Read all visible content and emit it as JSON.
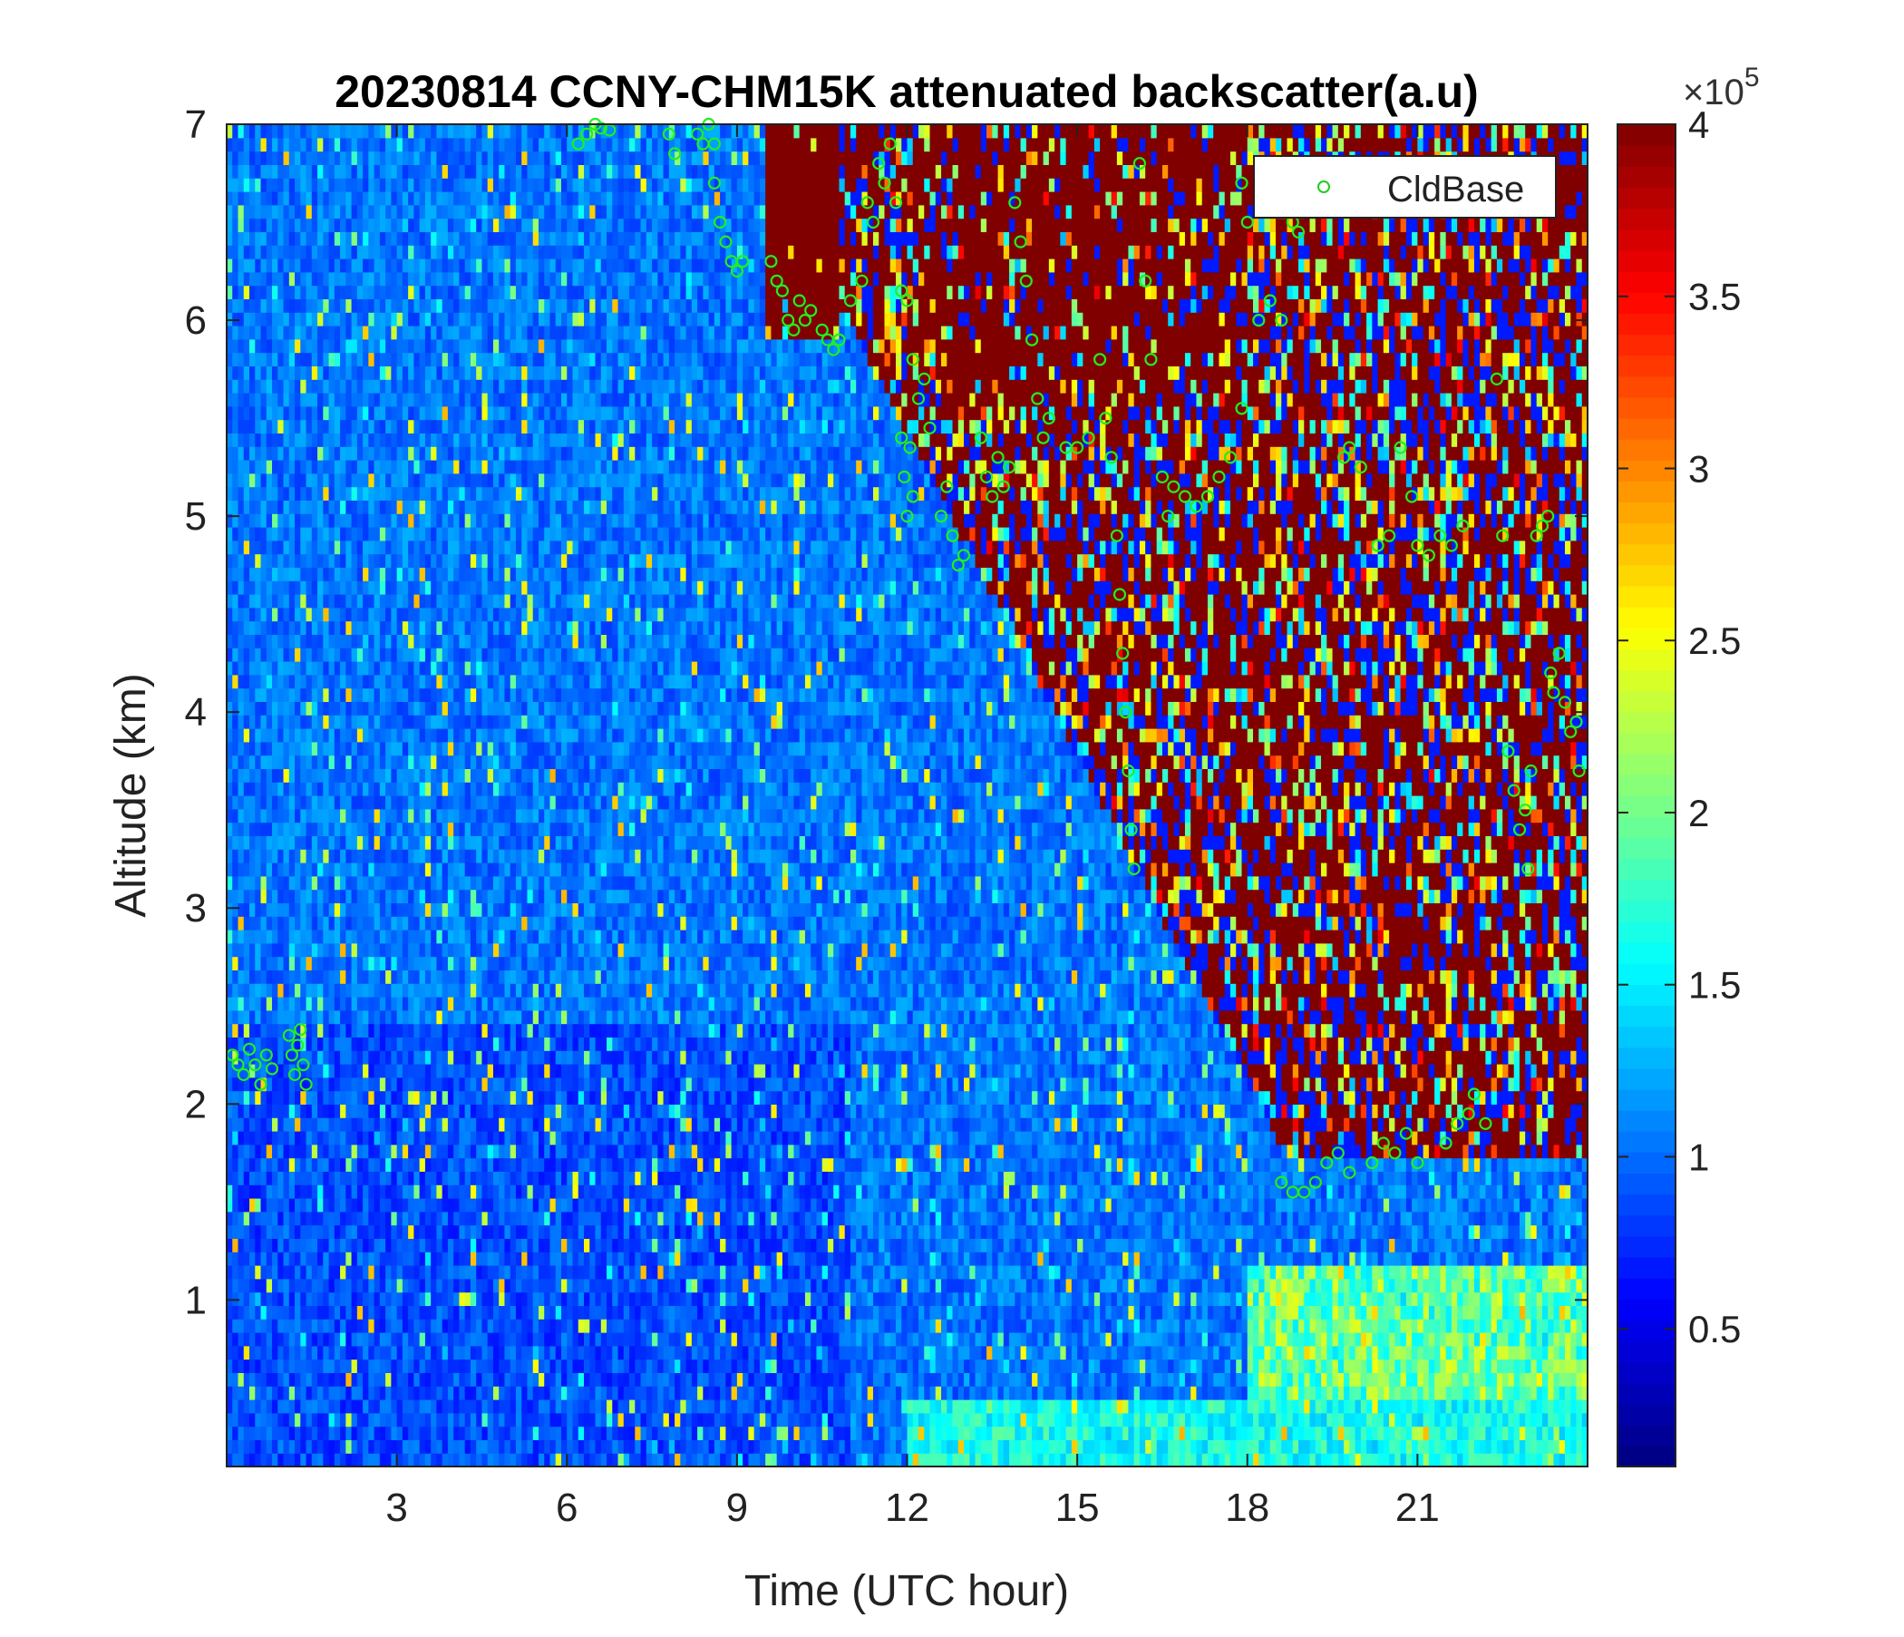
{
  "chart_data": {
    "type": "heatmap",
    "title": "20230814 CCNY-CHM15K attenuated backscatter(a.u)",
    "xlabel": "Time (UTC hour)",
    "ylabel": "Altitude (km)",
    "xlim": [
      0,
      24
    ],
    "ylim": [
      0.15,
      7
    ],
    "xticks": [
      3,
      6,
      9,
      12,
      15,
      18,
      21
    ],
    "yticks": [
      1,
      2,
      3,
      4,
      5,
      6,
      7
    ],
    "colorbar": {
      "colormap": "jet",
      "range": [
        0.1,
        4.0
      ],
      "ticks": [
        0.5,
        1,
        1.5,
        2,
        2.5,
        3,
        3.5,
        4
      ],
      "tick_labels": [
        "0.5",
        "1",
        "1.5",
        "2",
        "2.5",
        "3",
        "3.5",
        "4"
      ],
      "exponent_label": "×10",
      "exponent_power": "5"
    },
    "legend": {
      "position": "top-right",
      "entries": [
        "CldBase"
      ]
    },
    "series": [
      {
        "name": "CldBase",
        "marker": "circle",
        "color": "#22ee22",
        "points": [
          [
            0.1,
            2.25
          ],
          [
            0.2,
            2.2
          ],
          [
            0.3,
            2.15
          ],
          [
            0.4,
            2.28
          ],
          [
            0.5,
            2.2
          ],
          [
            0.6,
            2.1
          ],
          [
            0.7,
            2.25
          ],
          [
            0.8,
            2.18
          ],
          [
            1.1,
            2.35
          ],
          [
            1.15,
            2.25
          ],
          [
            1.2,
            2.15
          ],
          [
            1.25,
            2.3
          ],
          [
            1.3,
            2.38
          ],
          [
            1.35,
            2.2
          ],
          [
            1.4,
            2.1
          ],
          [
            6.2,
            6.9
          ],
          [
            6.35,
            6.95
          ],
          [
            6.5,
            7.0
          ],
          [
            6.6,
            6.98
          ],
          [
            6.75,
            6.97
          ],
          [
            7.8,
            6.95
          ],
          [
            7.9,
            6.85
          ],
          [
            8.3,
            6.95
          ],
          [
            8.4,
            6.9
          ],
          [
            8.5,
            7.0
          ],
          [
            8.6,
            6.9
          ],
          [
            8.6,
            6.7
          ],
          [
            8.7,
            6.5
          ],
          [
            8.8,
            6.4
          ],
          [
            8.9,
            6.3
          ],
          [
            9.0,
            6.25
          ],
          [
            9.1,
            6.3
          ],
          [
            9.6,
            6.3
          ],
          [
            9.7,
            6.2
          ],
          [
            9.8,
            6.15
          ],
          [
            9.9,
            6.0
          ],
          [
            10.0,
            5.95
          ],
          [
            10.1,
            6.1
          ],
          [
            10.2,
            6.0
          ],
          [
            10.3,
            6.05
          ],
          [
            10.5,
            5.95
          ],
          [
            10.6,
            5.9
          ],
          [
            10.7,
            5.85
          ],
          [
            10.8,
            5.9
          ],
          [
            11.0,
            6.1
          ],
          [
            11.2,
            6.2
          ],
          [
            11.3,
            6.6
          ],
          [
            11.4,
            6.5
          ],
          [
            11.5,
            6.8
          ],
          [
            11.6,
            6.7
          ],
          [
            11.7,
            6.9
          ],
          [
            11.8,
            6.6
          ],
          [
            11.9,
            6.15
          ],
          [
            12.0,
            6.1
          ],
          [
            12.1,
            5.8
          ],
          [
            12.2,
            5.6
          ],
          [
            12.3,
            5.7
          ],
          [
            12.4,
            5.45
          ],
          [
            11.9,
            5.4
          ],
          [
            11.95,
            5.2
          ],
          [
            12.0,
            5.0
          ],
          [
            12.05,
            5.35
          ],
          [
            12.1,
            5.1
          ],
          [
            12.6,
            5.0
          ],
          [
            12.7,
            5.15
          ],
          [
            12.8,
            4.9
          ],
          [
            12.9,
            4.75
          ],
          [
            13.0,
            4.8
          ],
          [
            13.3,
            5.4
          ],
          [
            13.4,
            5.2
          ],
          [
            13.5,
            5.1
          ],
          [
            13.6,
            5.3
          ],
          [
            13.7,
            5.15
          ],
          [
            13.8,
            5.25
          ],
          [
            13.9,
            6.6
          ],
          [
            14.0,
            6.4
          ],
          [
            14.1,
            6.2
          ],
          [
            14.2,
            5.9
          ],
          [
            14.3,
            5.6
          ],
          [
            14.4,
            5.4
          ],
          [
            14.5,
            5.5
          ],
          [
            14.8,
            5.35
          ],
          [
            15.0,
            5.35
          ],
          [
            15.2,
            5.4
          ],
          [
            15.4,
            5.8
          ],
          [
            15.5,
            5.5
          ],
          [
            15.6,
            5.3
          ],
          [
            15.7,
            4.9
          ],
          [
            15.75,
            4.6
          ],
          [
            15.8,
            4.3
          ],
          [
            15.85,
            4.0
          ],
          [
            15.9,
            3.7
          ],
          [
            15.95,
            3.4
          ],
          [
            16.0,
            3.2
          ],
          [
            16.1,
            6.8
          ],
          [
            16.2,
            6.2
          ],
          [
            16.3,
            5.8
          ],
          [
            16.5,
            5.2
          ],
          [
            16.6,
            5.0
          ],
          [
            16.7,
            5.15
          ],
          [
            16.9,
            5.1
          ],
          [
            17.1,
            5.05
          ],
          [
            17.3,
            5.1
          ],
          [
            17.5,
            5.2
          ],
          [
            17.7,
            5.3
          ],
          [
            17.9,
            5.55
          ],
          [
            17.9,
            6.7
          ],
          [
            18.0,
            6.5
          ],
          [
            18.2,
            6.0
          ],
          [
            18.4,
            6.1
          ],
          [
            18.6,
            6.0
          ],
          [
            18.8,
            6.5
          ],
          [
            18.9,
            6.45
          ],
          [
            18.6,
            1.6
          ],
          [
            18.8,
            1.55
          ],
          [
            19.0,
            1.55
          ],
          [
            19.2,
            1.6
          ],
          [
            19.4,
            1.7
          ],
          [
            19.6,
            1.75
          ],
          [
            19.8,
            1.65
          ],
          [
            19.7,
            5.3
          ],
          [
            19.8,
            5.35
          ],
          [
            20.0,
            5.25
          ],
          [
            20.2,
            1.7
          ],
          [
            20.4,
            1.8
          ],
          [
            20.6,
            1.75
          ],
          [
            20.8,
            1.85
          ],
          [
            21.0,
            1.7
          ],
          [
            20.3,
            4.85
          ],
          [
            20.5,
            4.9
          ],
          [
            20.7,
            5.35
          ],
          [
            20.9,
            5.1
          ],
          [
            21.0,
            4.85
          ],
          [
            21.2,
            4.8
          ],
          [
            21.4,
            4.9
          ],
          [
            21.6,
            4.85
          ],
          [
            21.8,
            4.95
          ],
          [
            21.5,
            1.8
          ],
          [
            21.7,
            1.9
          ],
          [
            21.9,
            1.95
          ],
          [
            22.0,
            2.05
          ],
          [
            22.2,
            1.9
          ],
          [
            22.4,
            5.7
          ],
          [
            22.5,
            4.9
          ],
          [
            22.6,
            3.8
          ],
          [
            22.7,
            3.6
          ],
          [
            22.8,
            3.4
          ],
          [
            22.9,
            3.5
          ],
          [
            23.0,
            3.7
          ],
          [
            22.95,
            3.2
          ],
          [
            23.1,
            4.9
          ],
          [
            23.2,
            4.95
          ],
          [
            23.3,
            5.0
          ],
          [
            23.35,
            4.2
          ],
          [
            23.4,
            4.1
          ],
          [
            23.5,
            4.3
          ],
          [
            23.6,
            4.05
          ],
          [
            23.7,
            3.9
          ],
          [
            23.8,
            3.95
          ],
          [
            23.85,
            3.7
          ]
        ]
      }
    ]
  }
}
